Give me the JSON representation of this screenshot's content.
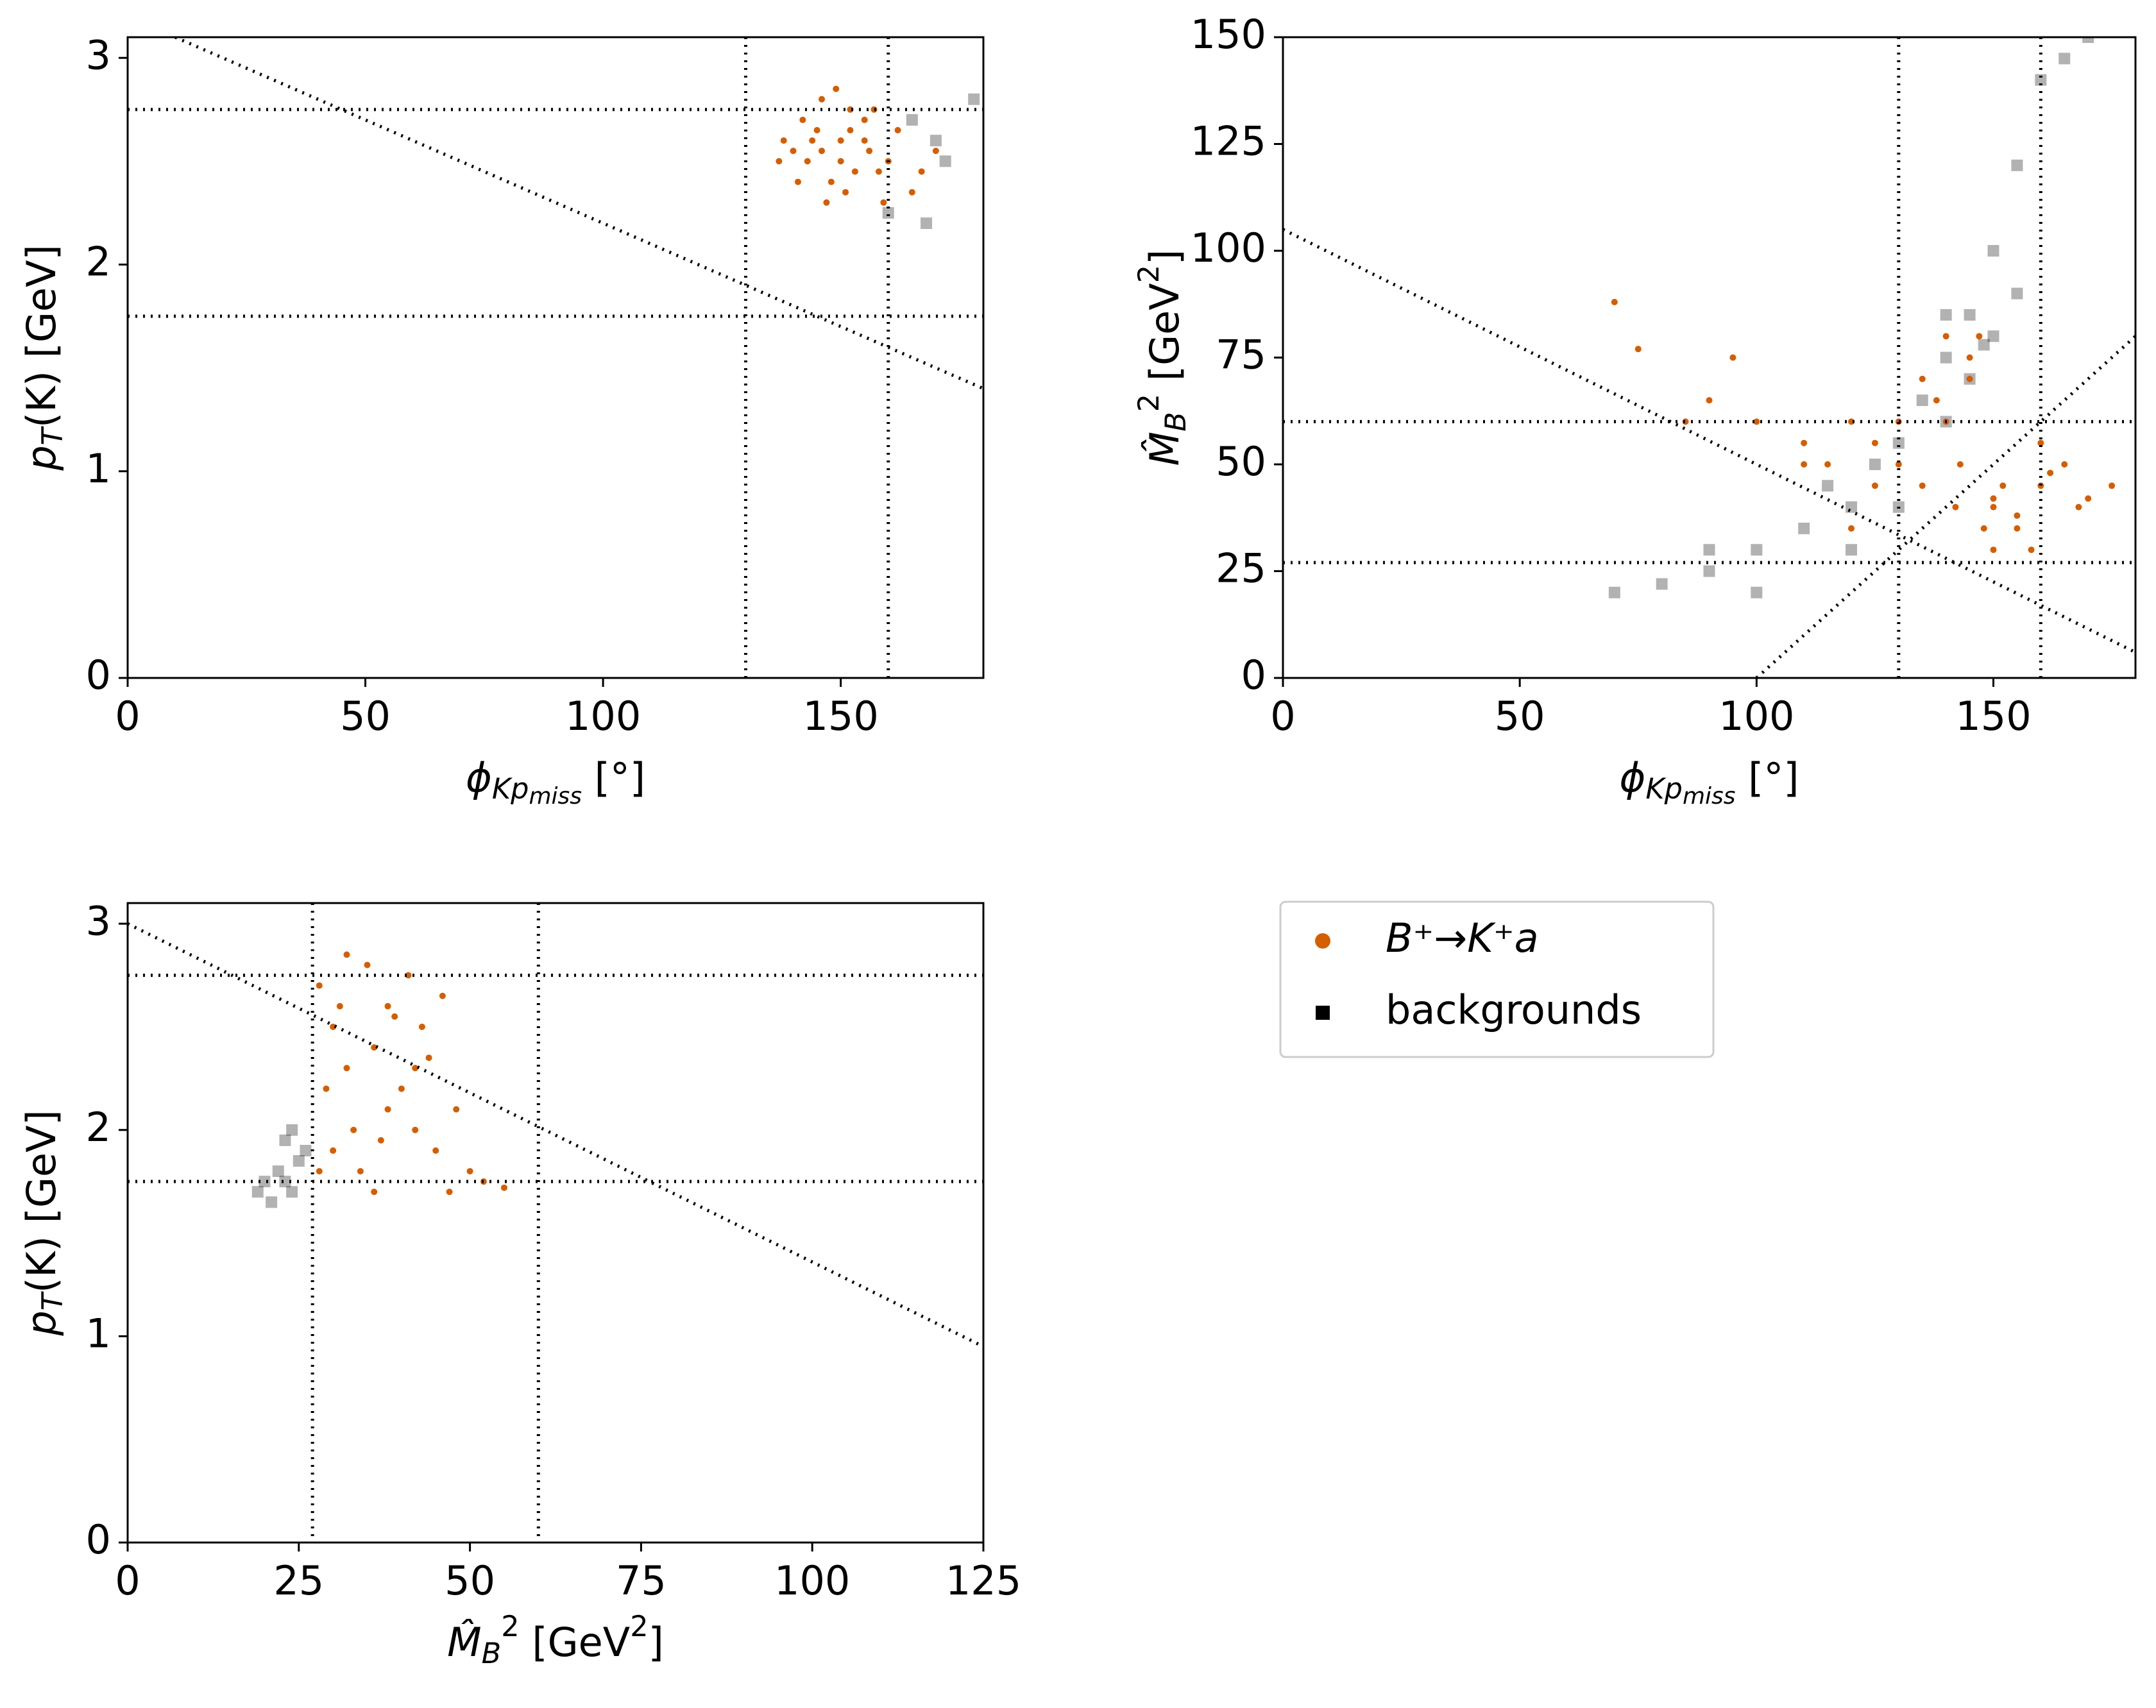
{
  "chart_data": [
    {
      "type": "scatter",
      "xlabel": [
        {
          "text": "ϕ",
          "shift": "none"
        },
        {
          "text": "Kp",
          "shift": "sub"
        },
        {
          "text": "miss",
          "shift": "sub2"
        },
        {
          "text": " [°]",
          "shift": "base"
        }
      ],
      "ylabel": [
        {
          "text": "p",
          "shift": "none"
        },
        {
          "text": "T",
          "shift": "sub"
        },
        {
          "text": "(K) [GeV]",
          "shift": "base"
        }
      ],
      "xlim": [
        0,
        180
      ],
      "ylim": [
        0,
        3.1
      ],
      "xticks": [
        0,
        50,
        100,
        150
      ],
      "yticks": [
        0,
        1,
        2,
        3
      ],
      "hlines": [
        1.75,
        2.75
      ],
      "vlines": [
        130,
        160
      ],
      "lines": [
        {
          "x": [
            10,
            180
          ],
          "y": [
            3.1,
            1.4
          ]
        }
      ],
      "series": [
        {
          "name": "B⁺→K⁺a",
          "color": "#d55e00",
          "marker": "circle",
          "x": [
            140,
            145,
            150,
            155,
            148,
            142,
            152,
            158,
            146,
            138,
            160,
            165,
            170,
            143,
            150,
            155,
            147,
            153,
            141,
            162,
            156,
            149,
            144,
            151,
            167,
            137,
            159,
            146,
            152,
            157
          ],
          "values": [
            2.55,
            2.65,
            2.5,
            2.6,
            2.4,
            2.7,
            2.75,
            2.45,
            2.8,
            2.6,
            2.5,
            2.35,
            2.55,
            2.5,
            2.6,
            2.7,
            2.3,
            2.45,
            2.4,
            2.65,
            2.55,
            2.85,
            2.6,
            2.35,
            2.45,
            2.5,
            2.3,
            2.55,
            2.65,
            2.75
          ]
        },
        {
          "name": "backgrounds",
          "color": "#000000",
          "marker": "square",
          "x": [
            165,
            170,
            178,
            172,
            168,
            160
          ],
          "values": [
            2.7,
            2.6,
            2.8,
            2.5,
            2.2,
            2.25
          ]
        }
      ]
    },
    {
      "type": "scatter",
      "xlabel": [
        {
          "text": "ϕ",
          "shift": "none"
        },
        {
          "text": "Kp",
          "shift": "sub"
        },
        {
          "text": "miss",
          "shift": "sub2"
        },
        {
          "text": " [°]",
          "shift": "base"
        }
      ],
      "ylabel": [
        {
          "text": "M̂",
          "shift": "none"
        },
        {
          "text": "B",
          "shift": "sub"
        },
        {
          "text": "2",
          "shift": "sup"
        },
        {
          "text": " [GeV",
          "shift": "base"
        },
        {
          "text": "2",
          "shift": "sup"
        },
        {
          "text": "]",
          "shift": "base"
        }
      ],
      "xlim": [
        0,
        180
      ],
      "ylim": [
        0,
        150
      ],
      "xticks": [
        0,
        50,
        100,
        150
      ],
      "yticks": [
        0,
        25,
        50,
        75,
        100,
        125,
        150
      ],
      "hlines": [
        27,
        60
      ],
      "vlines": [
        130,
        160
      ],
      "lines": [
        {
          "x": [
            0,
            180
          ],
          "y": [
            105,
            6
          ]
        },
        {
          "x": [
            100,
            180
          ],
          "y": [
            0,
            80
          ]
        }
      ],
      "series": [
        {
          "name": "B⁺→K⁺a",
          "color": "#d55e00",
          "marker": "circle",
          "x": [
            130,
            135,
            140,
            145,
            150,
            155,
            160,
            165,
            170,
            125,
            120,
            115,
            110,
            140,
            145,
            150,
            148,
            152,
            138,
            142,
            155,
            160,
            135,
            130,
            125,
            100,
            95,
            90,
            85,
            70,
            75,
            147,
            143,
            150,
            158,
            162,
            168,
            175,
            110,
            120
          ],
          "values": [
            50,
            45,
            60,
            75,
            40,
            35,
            45,
            50,
            42,
            55,
            60,
            50,
            55,
            80,
            70,
            30,
            35,
            45,
            65,
            40,
            38,
            55,
            70,
            60,
            45,
            60,
            75,
            65,
            60,
            88,
            77,
            80,
            50,
            42,
            30,
            48,
            40,
            45,
            50,
            35
          ]
        },
        {
          "name": "backgrounds",
          "color": "#000000",
          "marker": "square",
          "x": [
            70,
            80,
            90,
            100,
            110,
            120,
            130,
            135,
            140,
            145,
            150,
            155,
            160,
            150,
            140,
            120,
            100,
            130,
            145,
            165,
            170,
            155,
            125,
            115,
            90,
            140,
            148
          ],
          "values": [
            20,
            22,
            25,
            30,
            35,
            40,
            55,
            65,
            75,
            85,
            100,
            120,
            140,
            80,
            60,
            30,
            20,
            40,
            70,
            145,
            150,
            90,
            50,
            45,
            30,
            85,
            78
          ]
        }
      ]
    },
    {
      "type": "scatter",
      "xlabel": [
        {
          "text": "M̂",
          "shift": "none"
        },
        {
          "text": "B",
          "shift": "sub"
        },
        {
          "text": "2",
          "shift": "sup"
        },
        {
          "text": " [GeV",
          "shift": "base"
        },
        {
          "text": "2",
          "shift": "sup"
        },
        {
          "text": "]",
          "shift": "base"
        }
      ],
      "ylabel": [
        {
          "text": "p",
          "shift": "none"
        },
        {
          "text": "T",
          "shift": "sub"
        },
        {
          "text": "(K) [GeV]",
          "shift": "base"
        }
      ],
      "xlim": [
        0,
        125
      ],
      "ylim": [
        0,
        3.1
      ],
      "xticks": [
        0,
        25,
        50,
        75,
        100,
        125
      ],
      "yticks": [
        0,
        1,
        2,
        3
      ],
      "hlines": [
        1.75,
        2.75
      ],
      "vlines": [
        27,
        60
      ],
      "lines": [
        {
          "x": [
            0,
            125
          ],
          "y": [
            3.0,
            0.95
          ]
        }
      ],
      "series": [
        {
          "name": "B⁺→K⁺a",
          "color": "#d55e00",
          "marker": "circle",
          "x": [
            28,
            30,
            32,
            35,
            38,
            40,
            42,
            45,
            48,
            50,
            30,
            33,
            36,
            39,
            41,
            44,
            47,
            52,
            29,
            31,
            34,
            37,
            43,
            46,
            55,
            28,
            32,
            38,
            42,
            36
          ],
          "values": [
            2.7,
            2.5,
            2.3,
            2.8,
            2.6,
            2.2,
            2.0,
            1.9,
            2.1,
            1.8,
            1.9,
            2.0,
            2.4,
            2.55,
            2.75,
            2.35,
            1.7,
            1.75,
            2.2,
            2.6,
            1.8,
            1.95,
            2.5,
            2.65,
            1.72,
            1.8,
            2.85,
            2.1,
            2.3,
            1.7
          ]
        },
        {
          "name": "backgrounds",
          "color": "#000000",
          "marker": "square",
          "x": [
            20,
            22,
            23,
            24,
            25,
            21,
            26,
            19,
            23,
            24
          ],
          "values": [
            1.75,
            1.8,
            1.75,
            1.7,
            1.85,
            1.65,
            1.9,
            1.7,
            1.95,
            2.0
          ]
        }
      ]
    }
  ]
}
